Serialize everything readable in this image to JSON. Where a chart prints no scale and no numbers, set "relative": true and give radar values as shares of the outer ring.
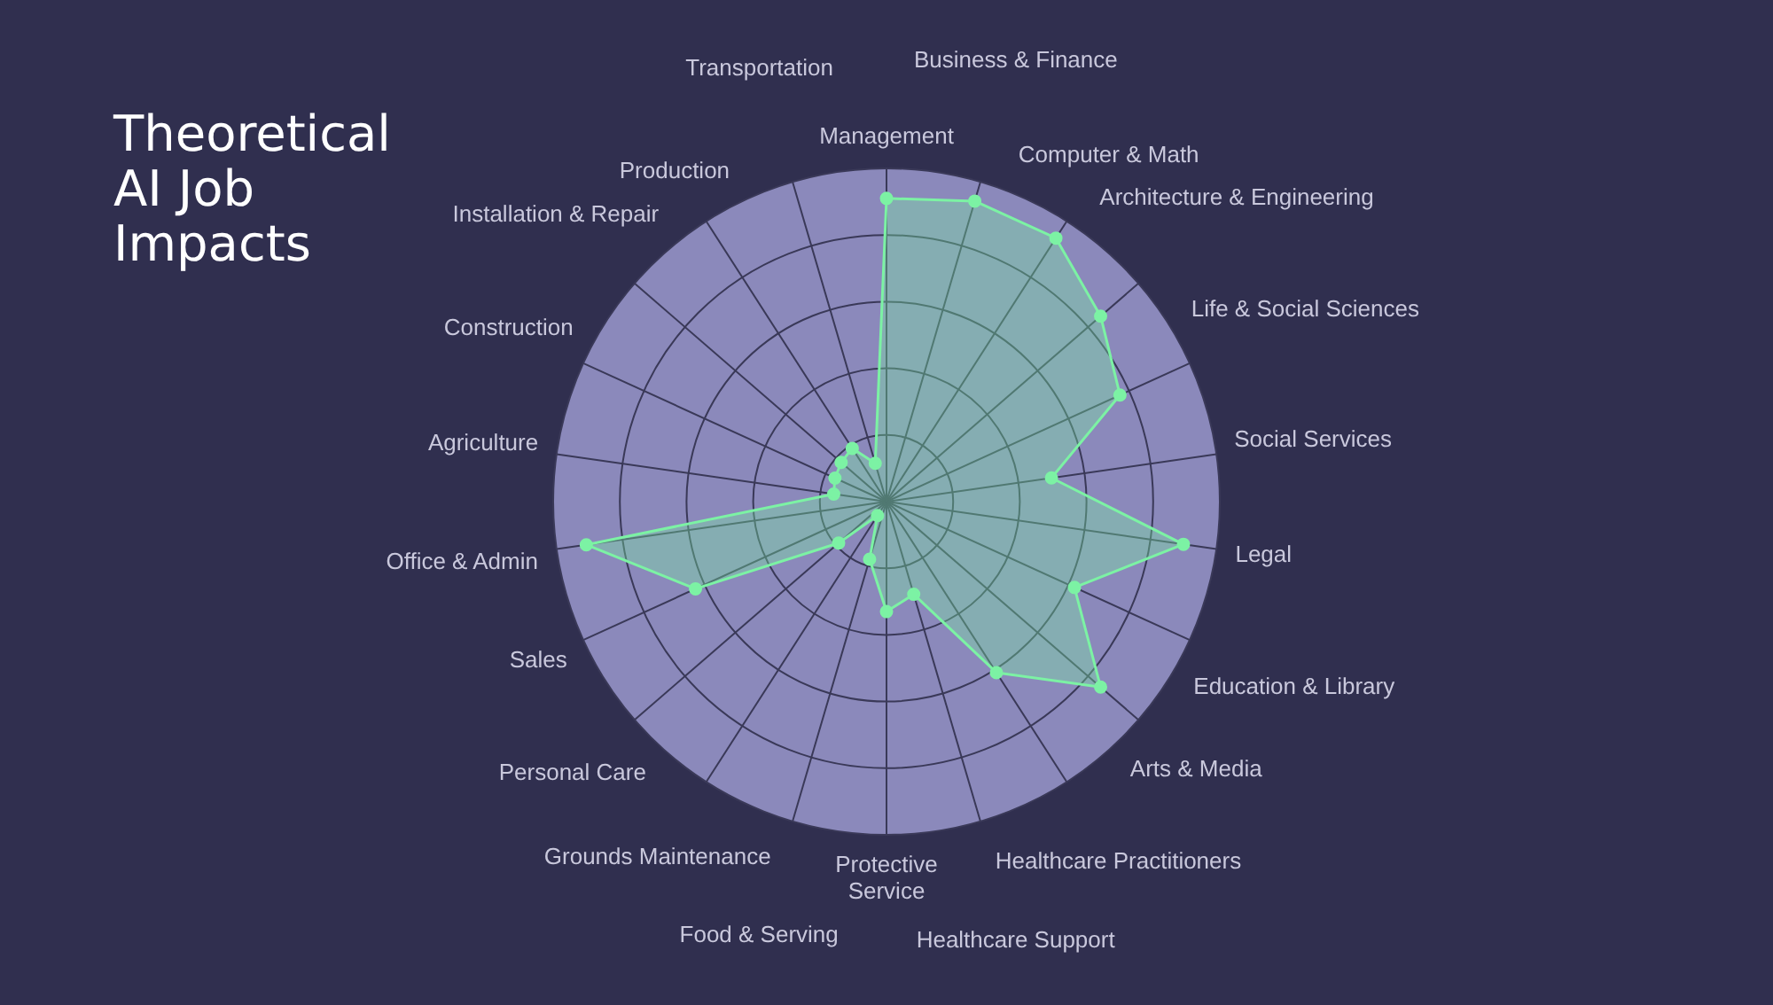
{
  "chart_data": {
    "type": "radar",
    "title": "Theoretical AI Job Impacts",
    "relative": true,
    "grid": true,
    "legend": false,
    "marker": "circle",
    "categories": [
      "Management",
      "Business & Finance",
      "Computer & Math",
      "Architecture & Engineering",
      "Life & Social Sciences",
      "Social Services",
      "Legal",
      "Education & Library",
      "Arts & Media",
      "Healthcare Practitioners",
      "Healthcare Support",
      "Protective Service",
      "Food & Serving",
      "Grounds Maintenance",
      "Personal Care",
      "Sales",
      "Office & Admin",
      "Agriculture",
      "Construction",
      "Installation & Repair",
      "Production",
      "Transportation"
    ],
    "series": [
      {
        "color": "#7cf2a4",
        "values": [
          0.91,
          0.94,
          0.94,
          0.85,
          0.77,
          0.5,
          0.9,
          0.62,
          0.85,
          0.61,
          0.29,
          0.33,
          0.18,
          0.05,
          0.19,
          0.63,
          0.91,
          0.16,
          0.17,
          0.18,
          0.19,
          0.12
        ]
      }
    ]
  }
}
